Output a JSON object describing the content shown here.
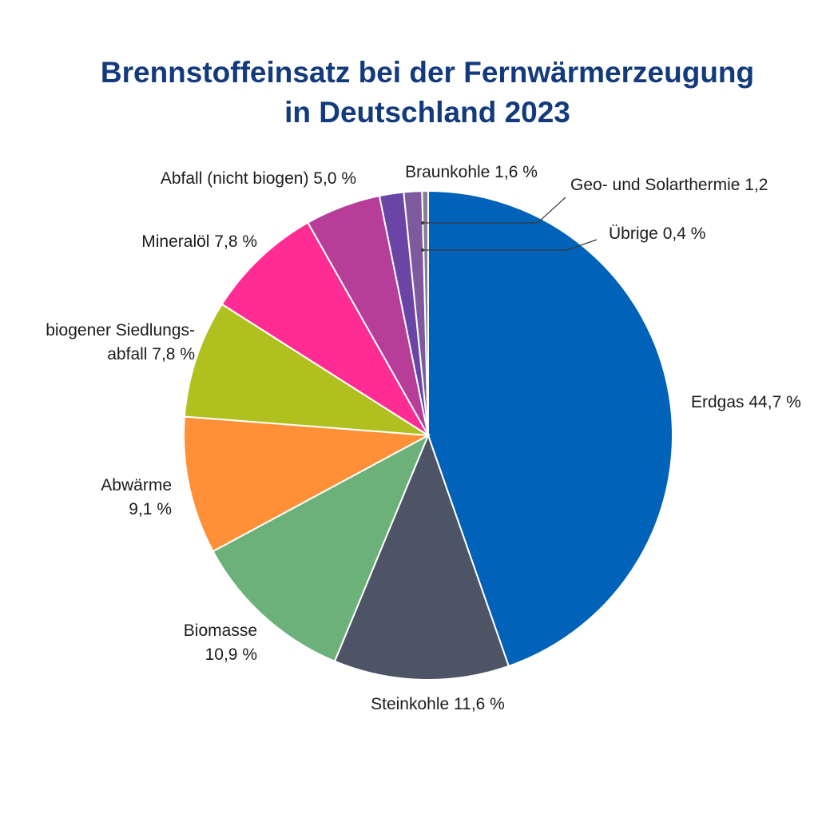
{
  "chart_data": {
    "type": "pie",
    "title": "Brennstoffeinsatz bei der Fernwärmerzeugung in Deutschland 2023",
    "title_lines": [
      "Brennstoffeinsatz bei der Fernwärmerzeugung",
      "in Deutschland 2023"
    ],
    "direction": "clockwise from top",
    "slices": [
      {
        "name": "Erdgas",
        "value": 44.7,
        "color": "#0063b9",
        "label": [
          "Erdgas 44,7 %"
        ]
      },
      {
        "name": "Steinkohle",
        "value": 11.6,
        "color": "#4d5466",
        "label": [
          "Steinkohle 11,6 %"
        ]
      },
      {
        "name": "Biomasse",
        "value": 10.9,
        "color": "#6db17a",
        "label": [
          "Biomasse",
          "10,9 %"
        ]
      },
      {
        "name": "Abwärme",
        "value": 9.1,
        "color": "#ff9037",
        "label": [
          "Abwärme",
          "9,1 %"
        ]
      },
      {
        "name": "biogener Siedlungsabfall",
        "value": 7.8,
        "color": "#b0c11f",
        "label": [
          "biogener Siedlungs-",
          "abfall 7,8 %"
        ]
      },
      {
        "name": "Mineralöl",
        "value": 7.8,
        "color": "#ff2d93",
        "label": [
          "Mineralöl 7,8 %"
        ]
      },
      {
        "name": "Abfall (nicht biogen)",
        "value": 5.0,
        "color": "#b63e98",
        "label": [
          "Abfall (nicht biogen) 5,0 %"
        ]
      },
      {
        "name": "Braunkohle",
        "value": 1.6,
        "color": "#6a45a6",
        "label": [
          "Braunkohle 1,6 %"
        ]
      },
      {
        "name": "Geo- und Solarthermie",
        "value": 1.2,
        "color": "#7d5a9e",
        "label": [
          "Geo- und Solarthermie 1,2"
        ]
      },
      {
        "name": "Übrige",
        "value": 0.4,
        "color": "#8a7f92",
        "label": [
          "Übrige 0,4 %"
        ]
      }
    ]
  }
}
